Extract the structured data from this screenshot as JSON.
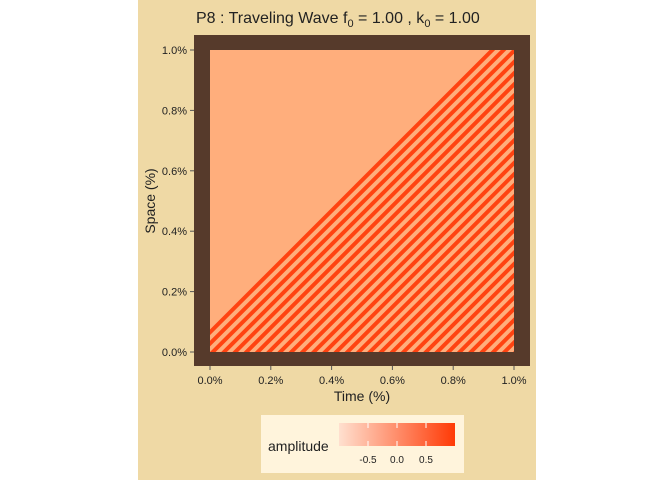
{
  "chart_data": {
    "type": "heatmap",
    "title_main": "P8 : Traveling Wave  f",
    "title_f_sub": "0",
    "title_f_val": " = 1.00 , k",
    "title_k_sub": "0",
    "title_k_val": " = 1.00",
    "xlabel": "Time (%)",
    "ylabel": "Space (%)",
    "xlim": [
      0,
      1
    ],
    "ylim": [
      0,
      1
    ],
    "x_ticks": [
      "0.0%",
      "0.2%",
      "0.4%",
      "0.6%",
      "0.8%",
      "1.0%"
    ],
    "y_ticks": [
      "0.0%",
      "0.2%",
      "0.4%",
      "0.6%",
      "0.8%",
      "1.0%"
    ],
    "f0": 1.0,
    "k0": 1.0,
    "stripe_count": 54,
    "amplitude_range": [
      -1,
      1
    ],
    "legend": {
      "title": "amplitude",
      "ticks": [
        "-0.5",
        "0.0",
        "0.5"
      ],
      "tick_values": [
        -0.5,
        0.0,
        0.5
      ],
      "colors": [
        "#ffe0cf",
        "#ff3a06"
      ],
      "placement": "bottom"
    },
    "colors": {
      "canvas_bg": "#efd9a5",
      "panel_bg": "#563a2b",
      "stripe_low": "#ffae7c",
      "stripe_high": "#ff4311"
    }
  }
}
